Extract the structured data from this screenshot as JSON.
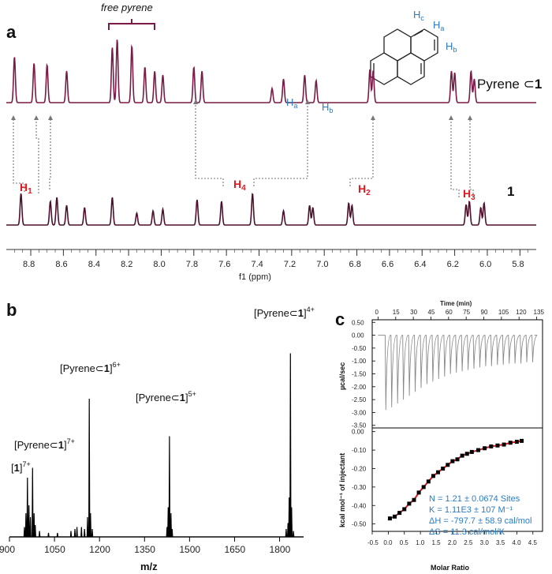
{
  "panels": {
    "a": "a",
    "b": "b",
    "c": "c"
  },
  "nmr": {
    "axis_title": "f1 (ppm)",
    "ticks": [
      "8.8",
      "8.6",
      "8.4",
      "8.2",
      "8.0",
      "7.8",
      "7.6",
      "7.4",
      "7.2",
      "7.0",
      "6.8",
      "6.6",
      "6.4",
      "6.2",
      "6.0",
      "5.8"
    ],
    "free_label": "free pyrene",
    "complex_label": "Pyrene ⊂",
    "complex_label_bold": "1",
    "host_label": "1",
    "struct_labels": {
      "c": "c",
      "a": "a",
      "b": "b"
    },
    "blue_labels": {
      "ha": "a",
      "hb": "b"
    },
    "red_labels": {
      "h1": "1",
      "h4": "4",
      "h2": "2",
      "h3": "3"
    },
    "h_letter": "H",
    "colors": {
      "complex": "#7a1a46",
      "host": "#4e0f2d",
      "red": "#e0181f",
      "blue": "#2b7bc4"
    }
  },
  "ms": {
    "axis_title": "m/z",
    "ticks": [
      "900",
      "1050",
      "1200",
      "1350",
      "1500",
      "1650",
      "1800"
    ],
    "labels": {
      "l1": {
        "pre": "[",
        "bold": "1",
        "post": "]",
        "sup": "7+"
      },
      "l7": {
        "pre": "[Pyrene⊂",
        "bold": "1",
        "post": "]",
        "sup": "7+"
      },
      "l6": {
        "pre": "[Pyrene⊂",
        "bold": "1",
        "post": "]",
        "sup": "6+"
      },
      "l5": {
        "pre": "[Pyrene⊂",
        "bold": "1",
        "post": "]",
        "sup": "5+"
      },
      "l4": {
        "pre": "[Pyrene⊂",
        "bold": "1",
        "post": "]",
        "sup": "4+"
      }
    }
  },
  "itc": {
    "top_axis_title": "Time (min)",
    "top_ticks": [
      "0",
      "15",
      "30",
      "45",
      "60",
      "75",
      "90",
      "105",
      "120",
      "135"
    ],
    "y1_title": "µcal/sec",
    "y1_ticks": [
      "0.50",
      "0.00",
      "-0.50",
      "-1.00",
      "-1.50",
      "-2.00",
      "-2.50",
      "-3.00",
      "-3.50"
    ],
    "y2_title": "kcal mol⁻¹ of injectant",
    "y2_ticks": [
      "0.00",
      "-0.10",
      "-0.20",
      "-0.30",
      "-0.40",
      "-0.50"
    ],
    "x_title": "Molar Ratio",
    "x_ticks": [
      "-0.5",
      "0.0",
      "0.5",
      "1.0",
      "1.5",
      "2.0",
      "2.5",
      "3.0",
      "3.5",
      "4.0",
      "4.5"
    ],
    "fit": {
      "n": "N = 1.21 ± 0.0674 Sites",
      "k": "K = 1.11E3 ± 107 M⁻¹",
      "dh": "ΔH = -797.7 ± 58.9 cal/mol",
      "ds": "ΔS = 11.3 cal/mol/K"
    }
  },
  "chart_data": [
    {
      "type": "line",
      "panel": "a",
      "xlabel": "f1 (ppm)",
      "xlim": [
        8.95,
        5.7
      ],
      "series": [
        {
          "name": "Pyrene⊂1",
          "peaks_ppm": [
            8.9,
            8.78,
            8.7,
            8.58,
            8.3,
            8.27,
            8.18,
            8.1,
            8.04,
            7.99,
            7.8,
            7.75,
            7.32,
            7.25,
            7.12,
            7.05,
            6.72,
            6.7,
            6.22,
            6.2,
            6.1,
            6.08
          ]
        },
        {
          "name": "1",
          "peaks_ppm": [
            8.86,
            8.68,
            8.64,
            8.58,
            8.47,
            8.3,
            8.15,
            8.05,
            7.99,
            7.78,
            7.63,
            7.44,
            7.25,
            7.09,
            7.07,
            6.85,
            6.83,
            6.13,
            6.11,
            6.04,
            6.02
          ]
        }
      ]
    },
    {
      "type": "bar",
      "panel": "b",
      "xlabel": "m/z",
      "xlim": [
        900,
        1880
      ],
      "peaks": [
        {
          "mz": 960,
          "rel": 0.3
        },
        {
          "mz": 977,
          "rel": 0.35
        },
        {
          "mz": 1118,
          "rel": 0.04
        },
        {
          "mz": 1140,
          "rel": 0.05
        },
        {
          "mz": 1166,
          "rel": 0.7
        },
        {
          "mz": 1433,
          "rel": 0.51
        },
        {
          "mz": 1828,
          "rel": 0.07
        },
        {
          "mz": 1836,
          "rel": 0.93
        }
      ]
    },
    {
      "type": "scatter",
      "panel": "c",
      "xlabel": "Molar Ratio",
      "ylabel": "kcal mol⁻¹ of injectant",
      "xlim": [
        -0.5,
        4.8
      ],
      "ylim": [
        -0.54,
        0.02
      ],
      "x": [
        0.05,
        0.2,
        0.35,
        0.5,
        0.65,
        0.8,
        0.95,
        1.1,
        1.25,
        1.4,
        1.55,
        1.7,
        1.85,
        2.0,
        2.15,
        2.3,
        2.45,
        2.6,
        2.8,
        3.0,
        3.2,
        3.4,
        3.6,
        3.8,
        4.0,
        4.15
      ],
      "y": [
        -0.47,
        -0.46,
        -0.44,
        -0.42,
        -0.39,
        -0.37,
        -0.33,
        -0.3,
        -0.27,
        -0.24,
        -0.22,
        -0.2,
        -0.18,
        -0.16,
        -0.15,
        -0.13,
        -0.12,
        -0.11,
        -0.1,
        -0.09,
        -0.08,
        -0.075,
        -0.07,
        -0.06,
        -0.055,
        -0.05
      ]
    },
    {
      "type": "line",
      "panel": "c-top",
      "xlabel": "Time (min)",
      "ylabel": "µcal/sec",
      "xlim": [
        -5,
        140
      ],
      "ylim": [
        -3.6,
        0.6
      ],
      "injection_times_min": [
        6,
        11,
        16,
        21,
        26,
        31,
        36,
        41,
        46,
        51,
        56,
        61,
        66,
        71,
        76,
        81,
        86,
        91,
        96,
        101,
        106,
        111,
        116,
        121,
        126,
        131
      ],
      "peak_ucal_s": [
        -2.9,
        -2.8,
        -2.65,
        -2.5,
        -2.35,
        -2.2,
        -2.05,
        -1.9,
        -1.8,
        -1.7,
        -1.6,
        -1.5,
        -1.45,
        -1.4,
        -1.35,
        -1.3,
        -1.25,
        -1.2,
        -1.2,
        -1.15,
        -1.15,
        -1.1,
        -1.1,
        -1.1,
        -1.05,
        -1.05
      ]
    }
  ]
}
